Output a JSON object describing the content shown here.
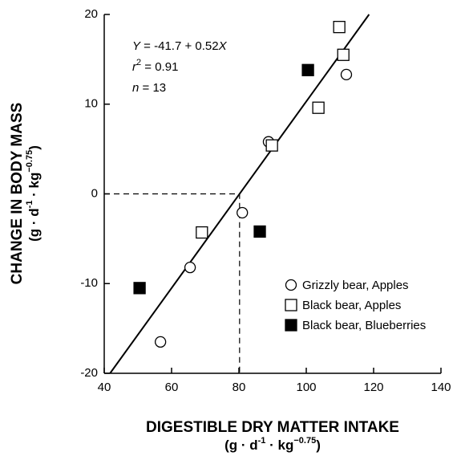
{
  "chart_data": {
    "type": "scatter",
    "xlabel": "DIGESTIBLE DRY MATTER INTAKE",
    "xunit": [
      "(g · d",
      "-1",
      " · kg",
      "−0.75",
      ")"
    ],
    "ylabel": "CHANGE IN BODY MASS",
    "yunit": [
      "(g · d",
      "-1",
      " · kg",
      "−0.75",
      ")"
    ],
    "annotation": [
      "Y",
      " = -41.7 + 0.52",
      "X",
      "r",
      "2",
      " = 0.91",
      "n",
      " = 13"
    ],
    "fit": {
      "intercept": -41.7,
      "slope": 0.52
    },
    "xlim": [
      40,
      140
    ],
    "xticks": [
      40,
      60,
      80,
      100,
      120,
      140
    ],
    "ylim": [
      -20,
      20
    ],
    "yticks": [
      -20,
      -10,
      0,
      10,
      20
    ],
    "legend": "lower right",
    "series": [
      {
        "name": "Grizzly bear, Apples",
        "marker": "open-circle",
        "x": [
          56.7,
          65.5,
          81,
          88.8,
          111.9
        ],
        "values": [
          -16.5,
          -8.2,
          -2.1,
          5.8,
          13.3
        ]
      },
      {
        "name": "Black bear, Apples",
        "marker": "open-square",
        "x": [
          69,
          89.8,
          103.6,
          109.8,
          111
        ],
        "values": [
          -4.3,
          5.4,
          9.6,
          18.6,
          15.5
        ]
      },
      {
        "name": "Black bear, Blueberries",
        "marker": "filled-square",
        "x": [
          50.5,
          86.2,
          100.5
        ],
        "values": [
          -10.5,
          -4.2,
          13.8
        ]
      }
    ]
  }
}
